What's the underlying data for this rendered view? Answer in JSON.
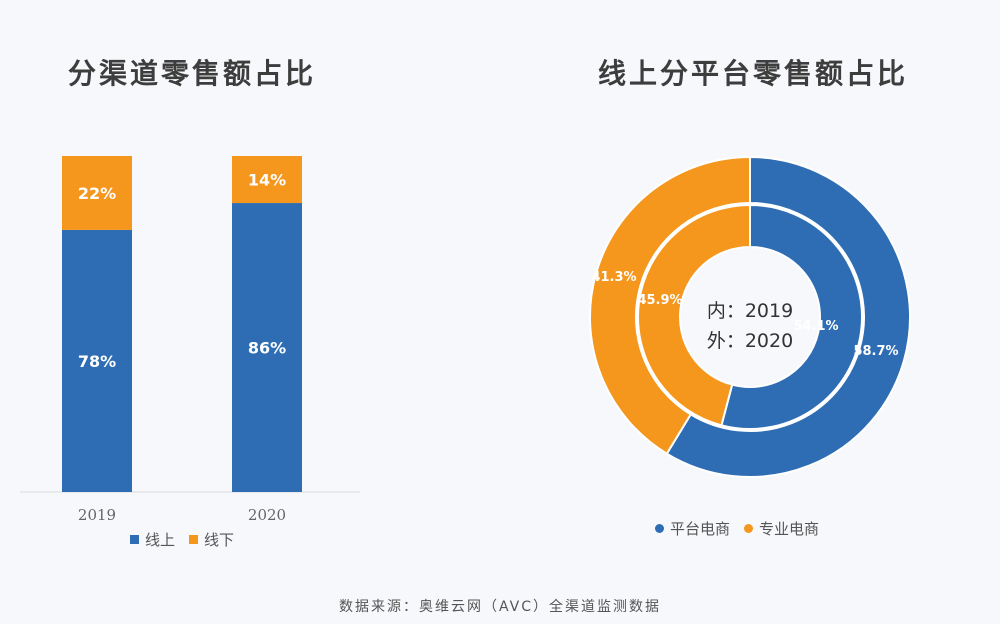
{
  "colors": {
    "online": "#2e6db4",
    "offline": "#f5961d"
  },
  "chart_data": [
    {
      "type": "bar",
      "stacked": true,
      "title": "分渠道零售额占比",
      "categories": [
        "2019",
        "2020"
      ],
      "series": [
        {
          "name": "线上",
          "values": [
            78,
            86
          ],
          "labels": [
            "78%",
            "86%"
          ]
        },
        {
          "name": "线下",
          "values": [
            22,
            14
          ],
          "labels": [
            "22%",
            "14%"
          ]
        }
      ],
      "ylim": [
        0,
        100
      ],
      "legend": "bottom"
    },
    {
      "type": "pie",
      "variant": "nested-donut",
      "title": "线上分平台零售额占比",
      "center_lines": [
        "内：2019",
        "外：2020"
      ],
      "categories": [
        "平台电商",
        "专业电商"
      ],
      "rings": [
        {
          "ring": "inner",
          "year": "2019",
          "values": [
            54.1,
            45.9
          ],
          "labels": [
            "54.1%",
            "45.9%"
          ]
        },
        {
          "ring": "outer",
          "year": "2020",
          "values": [
            58.7,
            41.3
          ],
          "labels": [
            "58.7%",
            "41.3%"
          ]
        }
      ],
      "legend": "bottom"
    }
  ],
  "source": "数据来源：奥维云网（AVC）全渠道监测数据"
}
